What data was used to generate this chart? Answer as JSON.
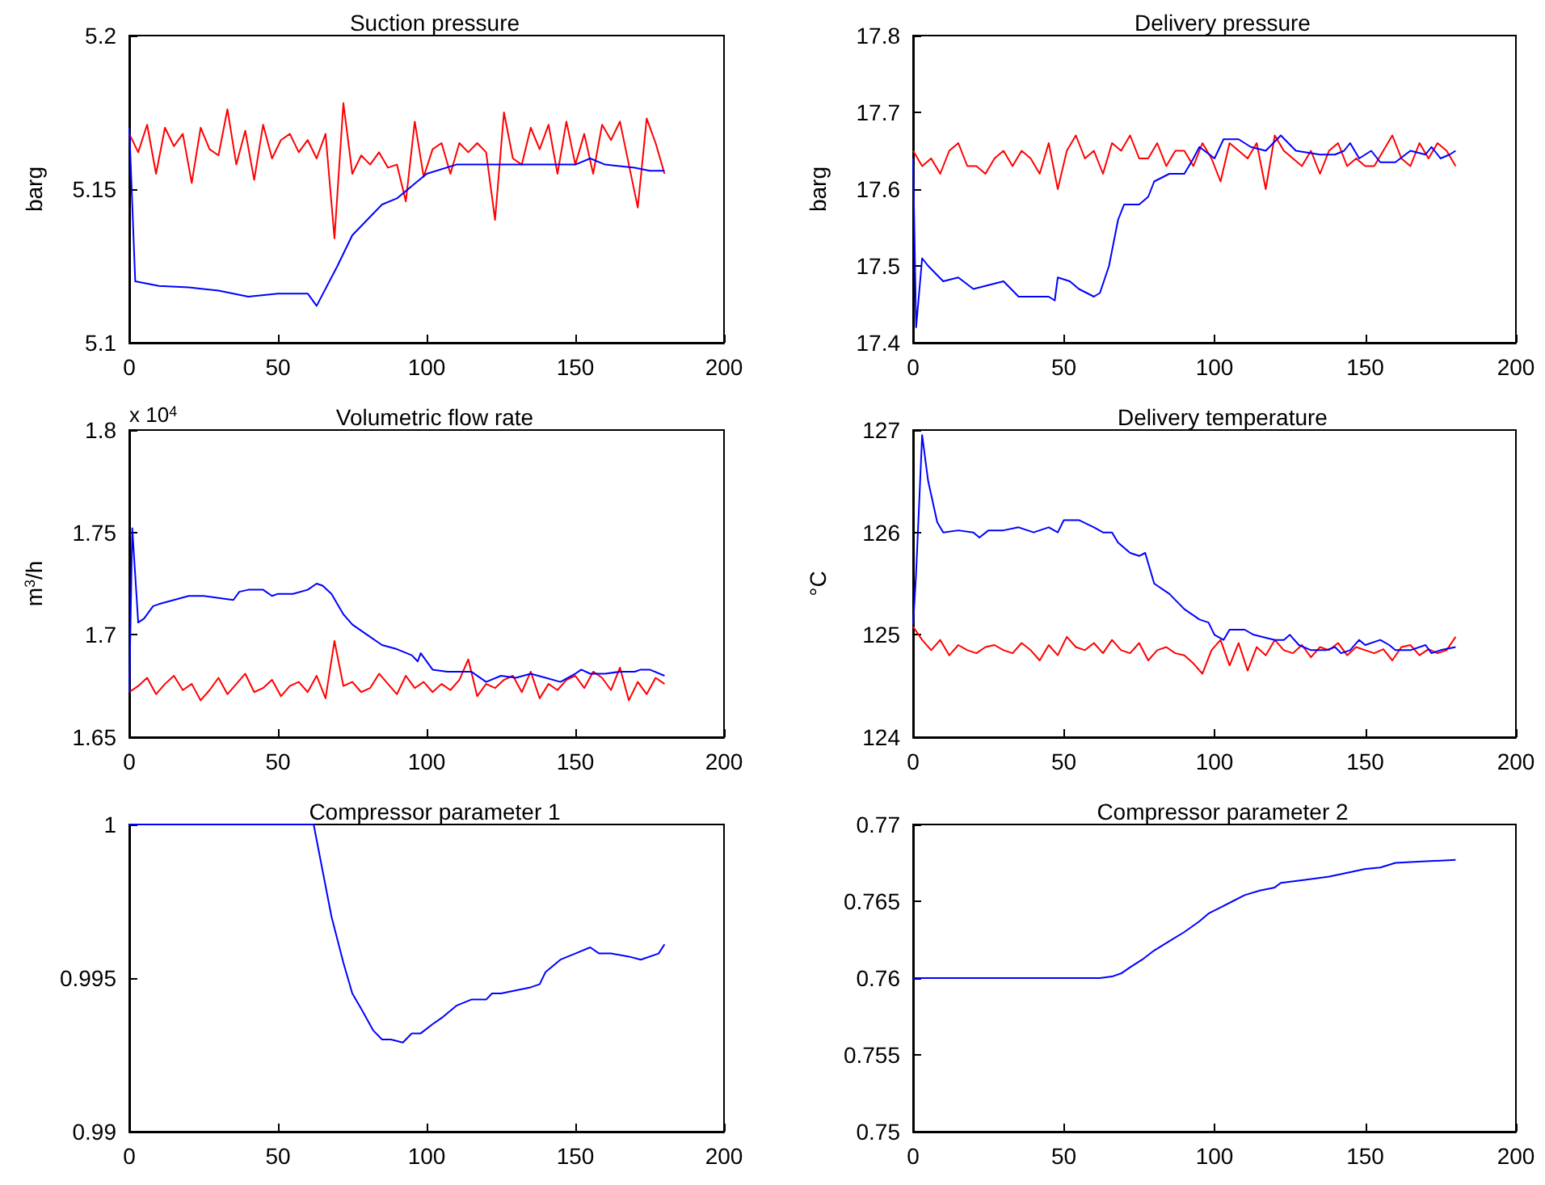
{
  "chart_data": [
    {
      "type": "line",
      "title": "Suction pressure",
      "ylabel": "barg",
      "xlim": [
        0,
        200
      ],
      "xticks": [
        0,
        50,
        100,
        150,
        200
      ],
      "ylim": [
        5.1,
        5.2
      ],
      "yticks": [
        5.1,
        5.15,
        5.2
      ],
      "grid": false,
      "series": [
        {
          "color": "#ff0000",
          "x": [
            0,
            3,
            6,
            9,
            12,
            15,
            18,
            21,
            24,
            27,
            30,
            33,
            36,
            39,
            42,
            45,
            48,
            51,
            54,
            57,
            60,
            63,
            66,
            69,
            72,
            75,
            78,
            81,
            84,
            87,
            90,
            93,
            96,
            99,
            102,
            105,
            108,
            111,
            114,
            117,
            120,
            123,
            126,
            129,
            132,
            135,
            138,
            141,
            144,
            147,
            150,
            153,
            156,
            159,
            162,
            165,
            168,
            171,
            174,
            177,
            180
          ],
          "values": [
            5.168,
            5.162,
            5.171,
            5.155,
            5.17,
            5.164,
            5.168,
            5.152,
            5.17,
            5.163,
            5.161,
            5.176,
            5.158,
            5.169,
            5.153,
            5.171,
            5.16,
            5.166,
            5.168,
            5.162,
            5.166,
            5.16,
            5.168,
            5.134,
            5.178,
            5.155,
            5.161,
            5.158,
            5.162,
            5.157,
            5.158,
            5.146,
            5.172,
            5.154,
            5.163,
            5.165,
            5.155,
            5.165,
            5.162,
            5.165,
            5.162,
            5.14,
            5.175,
            5.16,
            5.158,
            5.17,
            5.163,
            5.171,
            5.155,
            5.172,
            5.158,
            5.168,
            5.155,
            5.171,
            5.166,
            5.172,
            5.158,
            5.144,
            5.173,
            5.165,
            5.155
          ]
        },
        {
          "color": "#0000ff",
          "x": [
            0,
            2,
            10,
            20,
            30,
            40,
            50,
            60,
            63,
            70,
            75,
            80,
            85,
            90,
            100,
            110,
            120,
            130,
            140,
            150,
            155,
            160,
            170,
            175,
            180
          ],
          "values": [
            5.17,
            5.12,
            5.1185,
            5.118,
            5.117,
            5.115,
            5.116,
            5.116,
            5.112,
            5.125,
            5.135,
            5.14,
            5.145,
            5.147,
            5.155,
            5.158,
            5.158,
            5.158,
            5.158,
            5.158,
            5.16,
            5.158,
            5.157,
            5.156,
            5.156
          ]
        }
      ]
    },
    {
      "type": "line",
      "title": "Delivery pressure",
      "ylabel": "barg",
      "xlim": [
        0,
        200
      ],
      "xticks": [
        0,
        50,
        100,
        150,
        200
      ],
      "ylim": [
        17.4,
        17.8
      ],
      "yticks": [
        17.4,
        17.5,
        17.6,
        17.7,
        17.8
      ],
      "grid": false,
      "series": [
        {
          "color": "#ff0000",
          "x": [
            0,
            3,
            6,
            9,
            12,
            15,
            18,
            21,
            24,
            27,
            30,
            33,
            36,
            39,
            42,
            45,
            48,
            51,
            54,
            57,
            60,
            63,
            66,
            69,
            72,
            75,
            78,
            81,
            84,
            87,
            90,
            93,
            96,
            99,
            102,
            105,
            108,
            111,
            114,
            117,
            120,
            123,
            126,
            129,
            132,
            135,
            138,
            141,
            144,
            147,
            150,
            153,
            156,
            159,
            162,
            165,
            168,
            171,
            174,
            177,
            180
          ],
          "values": [
            17.65,
            17.63,
            17.64,
            17.62,
            17.65,
            17.66,
            17.63,
            17.63,
            17.62,
            17.64,
            17.65,
            17.63,
            17.65,
            17.64,
            17.62,
            17.66,
            17.6,
            17.65,
            17.67,
            17.64,
            17.65,
            17.62,
            17.66,
            17.65,
            17.67,
            17.64,
            17.64,
            17.66,
            17.63,
            17.65,
            17.65,
            17.63,
            17.66,
            17.64,
            17.61,
            17.66,
            17.65,
            17.64,
            17.66,
            17.6,
            17.67,
            17.65,
            17.64,
            17.63,
            17.65,
            17.62,
            17.65,
            17.66,
            17.63,
            17.64,
            17.63,
            17.63,
            17.65,
            17.67,
            17.64,
            17.63,
            17.66,
            17.64,
            17.66,
            17.65,
            17.63
          ]
        },
        {
          "color": "#0000ff",
          "x": [
            0,
            1,
            3,
            5,
            10,
            15,
            20,
            25,
            30,
            35,
            40,
            45,
            47,
            48,
            52,
            55,
            60,
            62,
            65,
            68,
            70,
            75,
            78,
            80,
            85,
            90,
            93,
            95,
            100,
            103,
            108,
            112,
            117,
            122,
            127,
            135,
            140,
            143,
            145,
            148,
            152,
            155,
            160,
            165,
            170,
            172,
            175,
            178,
            180
          ],
          "values": [
            17.64,
            17.42,
            17.51,
            17.5,
            17.48,
            17.485,
            17.47,
            17.475,
            17.48,
            17.46,
            17.46,
            17.46,
            17.455,
            17.485,
            17.48,
            17.47,
            17.46,
            17.465,
            17.5,
            17.56,
            17.58,
            17.58,
            17.59,
            17.61,
            17.62,
            17.62,
            17.64,
            17.655,
            17.64,
            17.665,
            17.665,
            17.655,
            17.65,
            17.67,
            17.65,
            17.645,
            17.645,
            17.65,
            17.66,
            17.64,
            17.65,
            17.635,
            17.635,
            17.65,
            17.645,
            17.655,
            17.64,
            17.645,
            17.65
          ]
        }
      ]
    },
    {
      "type": "line",
      "title": "Volumetric flow rate",
      "ylabel": "m$^{3}$/h",
      "annotations": [
        "x 10$^{4}$"
      ],
      "xlim": [
        0,
        200
      ],
      "xticks": [
        0,
        50,
        100,
        150,
        200
      ],
      "ylim": [
        1.65,
        1.8
      ],
      "yticks": [
        1.65,
        1.7,
        1.75,
        1.8
      ],
      "grid": false,
      "series": [
        {
          "color": "#ff0000",
          "x": [
            0,
            3,
            6,
            9,
            12,
            15,
            18,
            21,
            24,
            27,
            30,
            33,
            36,
            39,
            42,
            45,
            48,
            51,
            54,
            57,
            60,
            63,
            66,
            69,
            72,
            75,
            78,
            81,
            84,
            87,
            90,
            93,
            96,
            99,
            102,
            105,
            108,
            111,
            114,
            117,
            120,
            123,
            126,
            129,
            132,
            135,
            138,
            141,
            144,
            147,
            150,
            153,
            156,
            159,
            162,
            165,
            168,
            171,
            174,
            177,
            180
          ],
          "values": [
            1.672,
            1.675,
            1.679,
            1.671,
            1.676,
            1.68,
            1.673,
            1.676,
            1.668,
            1.673,
            1.679,
            1.671,
            1.676,
            1.681,
            1.672,
            1.674,
            1.678,
            1.67,
            1.675,
            1.677,
            1.672,
            1.68,
            1.669,
            1.697,
            1.675,
            1.677,
            1.672,
            1.674,
            1.681,
            1.676,
            1.671,
            1.68,
            1.674,
            1.677,
            1.672,
            1.676,
            1.673,
            1.678,
            1.688,
            1.67,
            1.676,
            1.674,
            1.678,
            1.68,
            1.672,
            1.682,
            1.669,
            1.676,
            1.673,
            1.678,
            1.68,
            1.674,
            1.682,
            1.679,
            1.673,
            1.684,
            1.668,
            1.677,
            1.671,
            1.679,
            1.676
          ]
        },
        {
          "color": "#0000ff",
          "x": [
            0,
            1,
            3,
            5,
            8,
            10,
            15,
            20,
            25,
            30,
            35,
            37,
            40,
            45,
            48,
            50,
            55,
            60,
            63,
            65,
            68,
            72,
            75,
            80,
            85,
            90,
            95,
            97,
            98,
            102,
            107,
            110,
            115,
            120,
            125,
            130,
            135,
            140,
            145,
            150,
            152,
            155,
            160,
            165,
            170,
            172,
            175,
            180
          ],
          "values": [
            1.672,
            1.752,
            1.706,
            1.708,
            1.714,
            1.715,
            1.717,
            1.719,
            1.719,
            1.718,
            1.717,
            1.721,
            1.722,
            1.722,
            1.719,
            1.72,
            1.72,
            1.722,
            1.725,
            1.724,
            1.72,
            1.71,
            1.705,
            1.7,
            1.695,
            1.693,
            1.69,
            1.687,
            1.691,
            1.683,
            1.682,
            1.682,
            1.682,
            1.677,
            1.68,
            1.679,
            1.681,
            1.679,
            1.677,
            1.681,
            1.683,
            1.681,
            1.681,
            1.682,
            1.682,
            1.683,
            1.683,
            1.68
          ]
        }
      ]
    },
    {
      "type": "line",
      "title": "Delivery temperature",
      "ylabel": "°C",
      "xlim": [
        0,
        200
      ],
      "xticks": [
        0,
        50,
        100,
        150,
        200
      ],
      "ylim": [
        124,
        127
      ],
      "yticks": [
        124,
        125,
        126,
        127
      ],
      "grid": false,
      "series": [
        {
          "color": "#ff0000",
          "x": [
            0,
            3,
            6,
            9,
            12,
            15,
            18,
            21,
            24,
            27,
            30,
            33,
            36,
            39,
            42,
            45,
            48,
            51,
            54,
            57,
            60,
            63,
            66,
            69,
            72,
            75,
            78,
            81,
            84,
            87,
            90,
            93,
            96,
            99,
            102,
            105,
            108,
            111,
            114,
            117,
            120,
            123,
            126,
            129,
            132,
            135,
            138,
            141,
            144,
            147,
            150,
            153,
            156,
            159,
            162,
            165,
            168,
            171,
            174,
            177,
            180
          ],
          "values": [
            125.08,
            124.95,
            124.85,
            124.95,
            124.8,
            124.9,
            124.85,
            124.82,
            124.88,
            124.9,
            124.85,
            124.82,
            124.92,
            124.85,
            124.75,
            124.9,
            124.8,
            124.98,
            124.88,
            124.85,
            124.92,
            124.82,
            124.95,
            124.85,
            124.82,
            124.92,
            124.75,
            124.85,
            124.88,
            124.82,
            124.8,
            124.72,
            124.62,
            124.85,
            124.95,
            124.7,
            124.92,
            124.65,
            124.88,
            124.8,
            124.95,
            124.85,
            124.82,
            124.9,
            124.78,
            124.88,
            124.85,
            124.92,
            124.8,
            124.88,
            124.85,
            124.82,
            124.86,
            124.75,
            124.88,
            124.9,
            124.8,
            124.86,
            124.82,
            124.85,
            124.98
          ]
        },
        {
          "color": "#0000ff",
          "x": [
            0,
            1,
            3,
            5,
            8,
            10,
            15,
            20,
            22,
            25,
            30,
            35,
            40,
            45,
            48,
            50,
            55,
            60,
            63,
            66,
            68,
            72,
            75,
            77,
            80,
            85,
            90,
            95,
            98,
            100,
            103,
            105,
            110,
            113,
            120,
            123,
            125,
            128,
            132,
            137,
            140,
            142,
            145,
            148,
            150,
            155,
            158,
            160,
            165,
            170,
            172,
            175,
            180
          ],
          "values": [
            125.1,
            125.6,
            126.95,
            126.5,
            126.1,
            126.0,
            126.02,
            126.0,
            125.95,
            126.02,
            126.02,
            126.05,
            126.0,
            126.05,
            126.0,
            126.12,
            126.12,
            126.05,
            126.0,
            126.0,
            125.9,
            125.8,
            125.77,
            125.8,
            125.5,
            125.4,
            125.25,
            125.15,
            125.12,
            125.0,
            124.95,
            125.05,
            125.05,
            125.0,
            124.95,
            124.95,
            125.0,
            124.9,
            124.85,
            124.85,
            124.88,
            124.82,
            124.85,
            124.95,
            124.9,
            124.95,
            124.9,
            124.85,
            124.85,
            124.9,
            124.82,
            124.85,
            124.88
          ]
        }
      ]
    },
    {
      "type": "line",
      "title": "Compressor parameter 1",
      "xlim": [
        0,
        200
      ],
      "xticks": [
        0,
        50,
        100,
        150,
        200
      ],
      "ylim": [
        0.99,
        1
      ],
      "yticks": [
        0.99,
        0.995,
        1
      ],
      "grid": false,
      "series": [
        {
          "color": "#0000ff",
          "x": [
            0,
            62,
            65,
            68,
            72,
            75,
            78,
            82,
            85,
            88,
            92,
            95,
            98,
            102,
            105,
            110,
            115,
            120,
            122,
            125,
            130,
            135,
            138,
            140,
            145,
            150,
            155,
            158,
            162,
            168,
            172,
            178,
            180
          ],
          "values": [
            1,
            1,
            0.9985,
            0.997,
            0.9955,
            0.9945,
            0.994,
            0.9933,
            0.993,
            0.993,
            0.9929,
            0.9932,
            0.9932,
            0.9935,
            0.9937,
            0.9941,
            0.9943,
            0.9943,
            0.9945,
            0.9945,
            0.9946,
            0.9947,
            0.9948,
            0.9952,
            0.9956,
            0.9958,
            0.996,
            0.9958,
            0.9958,
            0.9957,
            0.9956,
            0.9958,
            0.9961
          ]
        }
      ]
    },
    {
      "type": "line",
      "title": "Compressor parameter 2",
      "xlim": [
        0,
        200
      ],
      "xticks": [
        0,
        50,
        100,
        150,
        200
      ],
      "ylim": [
        0.75,
        0.77
      ],
      "yticks": [
        0.75,
        0.755,
        0.76,
        0.765,
        0.77
      ],
      "grid": false,
      "series": [
        {
          "color": "#0000ff",
          "x": [
            0,
            62,
            66,
            69,
            72,
            76,
            80,
            85,
            90,
            95,
            98,
            102,
            106,
            110,
            115,
            120,
            122,
            130,
            138,
            145,
            150,
            155,
            160,
            170,
            180
          ],
          "values": [
            0.76,
            0.76,
            0.7601,
            0.7603,
            0.7607,
            0.7612,
            0.7618,
            0.7624,
            0.763,
            0.7637,
            0.7642,
            0.7646,
            0.765,
            0.7654,
            0.7657,
            0.7659,
            0.7662,
            0.7664,
            0.7666,
            0.7669,
            0.7671,
            0.7672,
            0.7675,
            0.7676,
            0.7677
          ]
        }
      ]
    }
  ]
}
